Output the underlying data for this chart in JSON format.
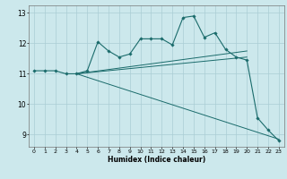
{
  "title": "",
  "xlabel": "Humidex (Indice chaleur)",
  "background_color": "#cce8ec",
  "line_color": "#1a6b6b",
  "grid_color": "#aacdd5",
  "xlim": [
    -0.5,
    23.5
  ],
  "ylim": [
    8.6,
    13.25
  ],
  "yticks": [
    9,
    10,
    11,
    12,
    13
  ],
  "xticks": [
    0,
    1,
    2,
    3,
    4,
    5,
    6,
    7,
    8,
    9,
    10,
    11,
    12,
    13,
    14,
    15,
    16,
    17,
    18,
    19,
    20,
    21,
    22,
    23
  ],
  "main_x": [
    0,
    1,
    2,
    3,
    4,
    5,
    6,
    7,
    8,
    9,
    10,
    11,
    12,
    13,
    14,
    15,
    16,
    17,
    18,
    19,
    20,
    21,
    22,
    23
  ],
  "main_y": [
    11.1,
    11.1,
    11.1,
    11.0,
    11.0,
    11.1,
    12.05,
    11.75,
    11.55,
    11.65,
    12.15,
    12.15,
    12.15,
    11.95,
    12.85,
    12.9,
    12.2,
    12.35,
    11.8,
    11.55,
    11.45,
    9.55,
    9.15,
    8.8
  ],
  "line1_x": [
    4,
    20
  ],
  "line1_y": [
    11.0,
    11.75
  ],
  "line2_x": [
    4,
    20
  ],
  "line2_y": [
    11.0,
    11.55
  ],
  "line3_x": [
    4,
    23
  ],
  "line3_y": [
    11.0,
    8.85
  ]
}
